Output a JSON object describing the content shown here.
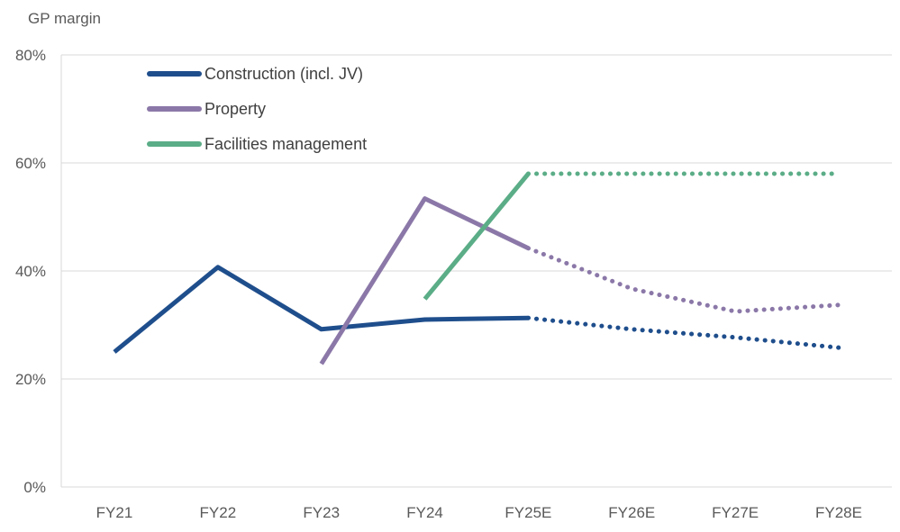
{
  "chart_data": {
    "type": "line",
    "ylabel": "GP margin",
    "categories": [
      "FY21",
      "FY22",
      "FY23",
      "FY24",
      "FY25E",
      "FY26E",
      "FY27E",
      "FY28E"
    ],
    "forecast_start_index": 4,
    "ylim": [
      0,
      80
    ],
    "yticks": [
      0,
      20,
      40,
      60,
      80
    ],
    "ytick_labels": [
      "0%",
      "20%",
      "40%",
      "60%",
      "80%"
    ],
    "grid": true,
    "legend_position": "top-left",
    "series": [
      {
        "name": "Construction (incl. JV)",
        "color": "#1F4E8C",
        "values": [
          25,
          40.7,
          29.2,
          31.0,
          31.3,
          29.2,
          27.7,
          25.8
        ]
      },
      {
        "name": "Property",
        "color": "#8B78A8",
        "values": [
          null,
          null,
          22.8,
          53.4,
          44.2,
          36.7,
          32.5,
          33.7
        ]
      },
      {
        "name": "Facilities management",
        "color": "#5BAD87",
        "values": [
          null,
          null,
          null,
          34.8,
          58.0,
          58.0,
          58.0,
          58.0
        ]
      }
    ]
  }
}
